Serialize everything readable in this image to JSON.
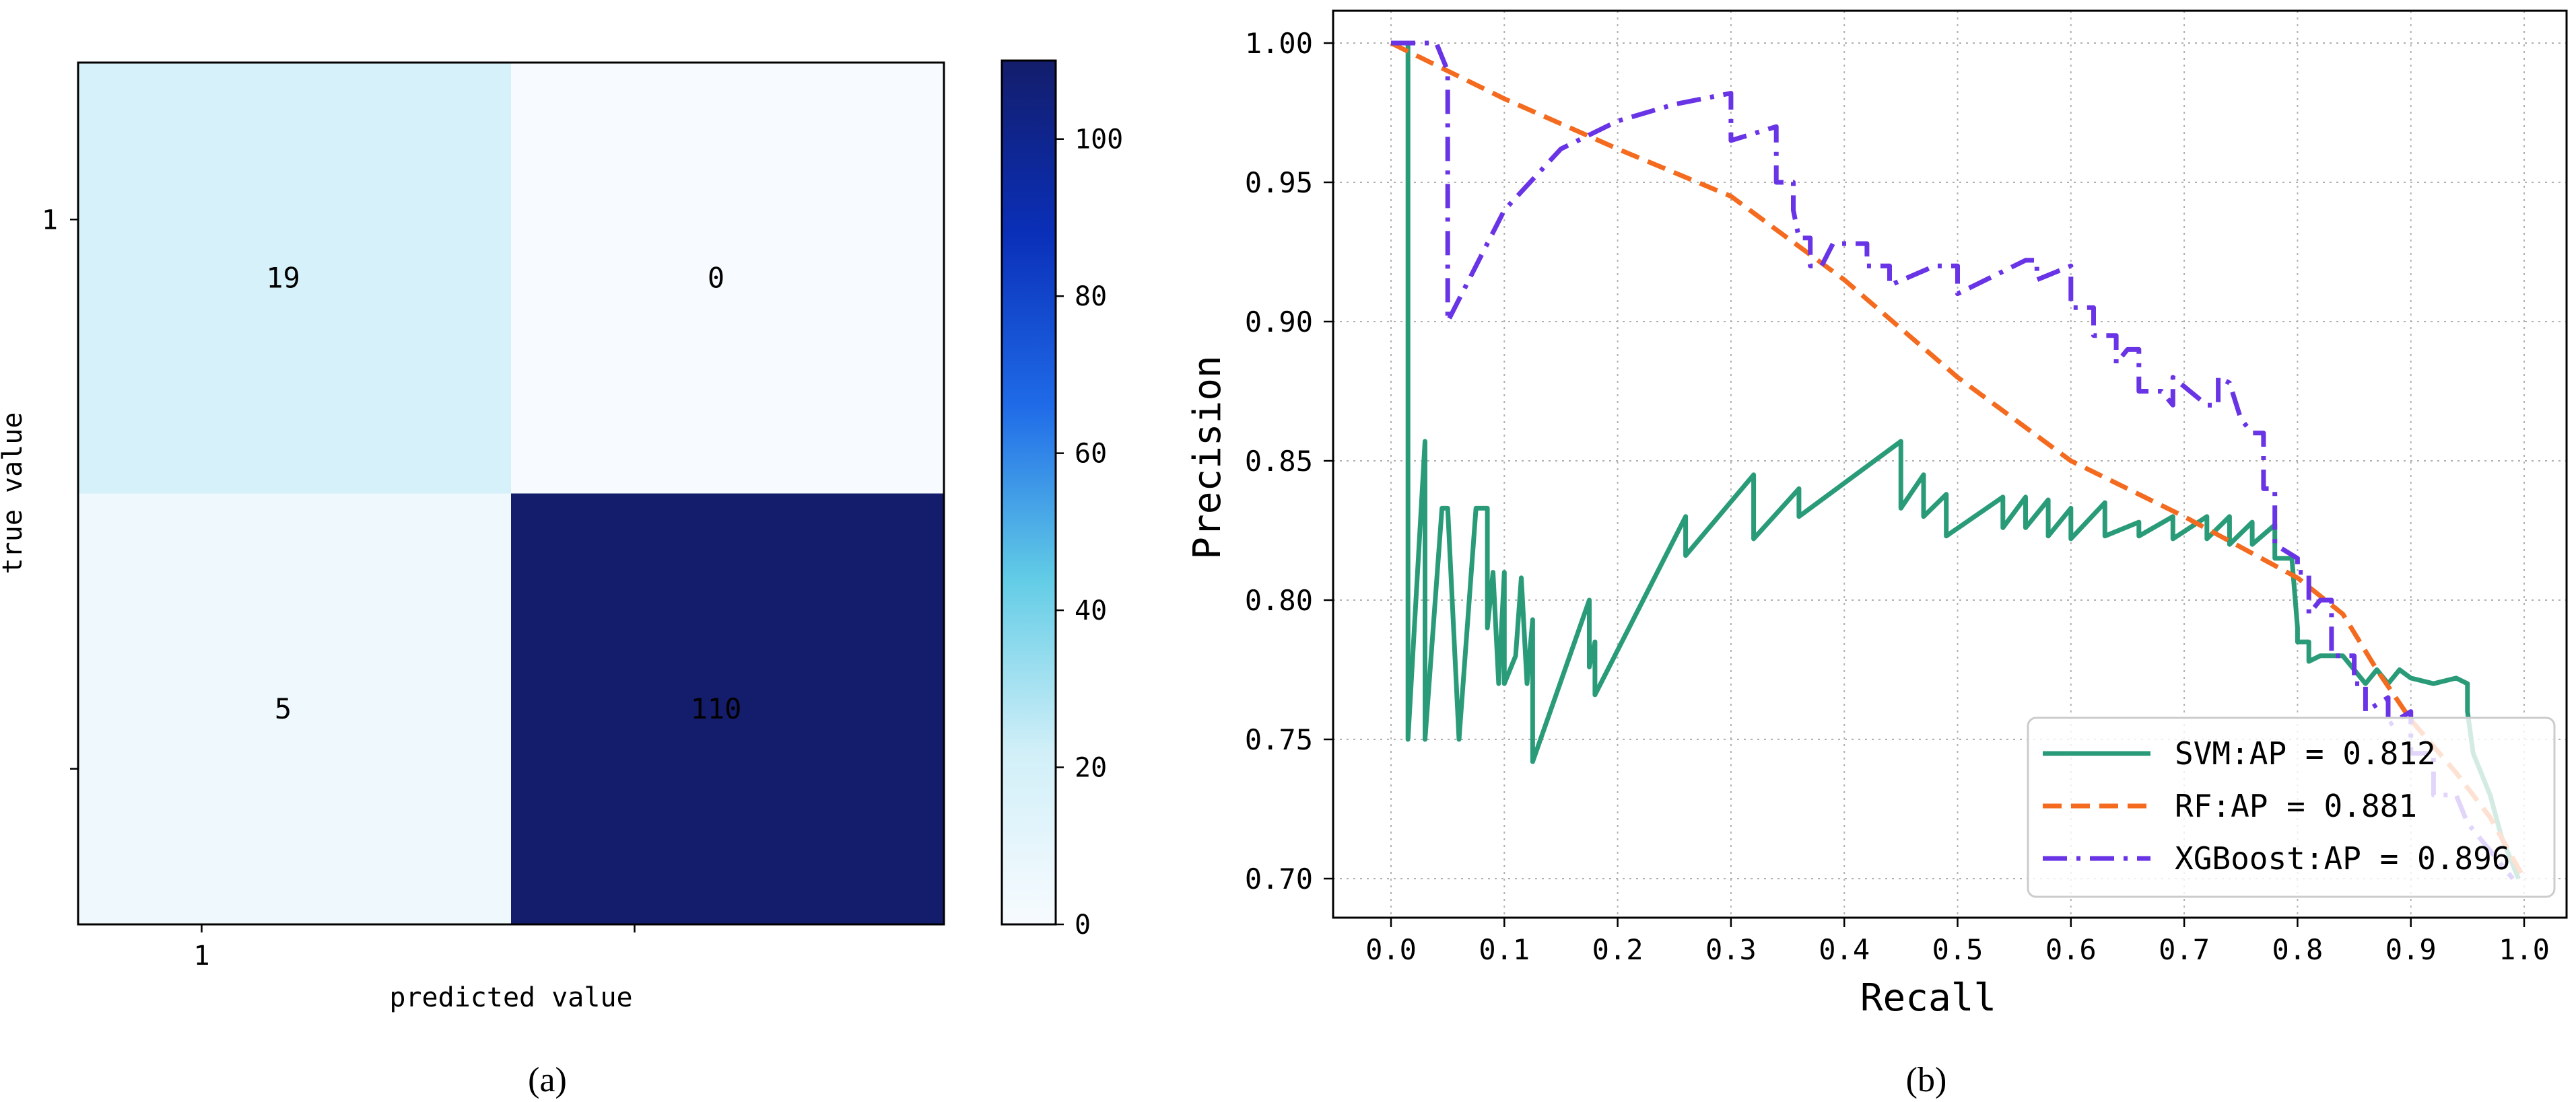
{
  "chart_data": [
    {
      "type": "heatmap",
      "panel_label": "(a)",
      "xlabel": "predicted value",
      "ylabel": "true value",
      "x_tick_labels": [
        "1",
        ""
      ],
      "y_tick_labels": [
        "1",
        ""
      ],
      "matrix": [
        [
          19,
          0
        ],
        [
          5,
          110
        ]
      ],
      "colorbar": {
        "min": 0,
        "max": 110,
        "ticks": [
          "0",
          "20",
          "40",
          "60",
          "80",
          "100"
        ],
        "tick_values": [
          0,
          20,
          40,
          60,
          80,
          100
        ],
        "colormap": [
          "#f7fbff",
          "#d1eff8",
          "#62cce6",
          "#1f6be8",
          "#0a2fb8",
          "#131d6b"
        ]
      }
    },
    {
      "type": "line",
      "panel_label": "(b)",
      "xlabel": "Recall",
      "ylabel": "Precision",
      "xlim": [
        -0.05,
        1.03
      ],
      "ylim": [
        0.685,
        1.005
      ],
      "x_ticks": [
        "0.0",
        "0.1",
        "0.2",
        "0.3",
        "0.4",
        "0.5",
        "0.6",
        "0.7",
        "0.8",
        "0.9",
        "1.0"
      ],
      "y_ticks": [
        "0.70",
        "0.75",
        "0.80",
        "0.85",
        "0.90",
        "0.95",
        "1.00"
      ],
      "grid": true,
      "legend_position": "lower-right",
      "series": [
        {
          "name": "SVM:AP = 0.812",
          "color": "#2a9b78",
          "style": "solid",
          "points": [
            [
              0.0,
              1.0
            ],
            [
              0.015,
              1.0
            ],
            [
              0.015,
              0.75
            ],
            [
              0.03,
              0.857
            ],
            [
              0.03,
              0.75
            ],
            [
              0.045,
              0.833
            ],
            [
              0.05,
              0.833
            ],
            [
              0.06,
              0.75
            ],
            [
              0.075,
              0.833
            ],
            [
              0.085,
              0.833
            ],
            [
              0.085,
              0.79
            ],
            [
              0.09,
              0.81
            ],
            [
              0.095,
              0.77
            ],
            [
              0.1,
              0.81
            ],
            [
              0.1,
              0.77
            ],
            [
              0.11,
              0.78
            ],
            [
              0.115,
              0.808
            ],
            [
              0.12,
              0.77
            ],
            [
              0.125,
              0.793
            ],
            [
              0.125,
              0.742
            ],
            [
              0.175,
              0.8
            ],
            [
              0.175,
              0.776
            ],
            [
              0.18,
              0.785
            ],
            [
              0.18,
              0.766
            ],
            [
              0.26,
              0.83
            ],
            [
              0.26,
              0.816
            ],
            [
              0.32,
              0.845
            ],
            [
              0.32,
              0.822
            ],
            [
              0.36,
              0.84
            ],
            [
              0.36,
              0.83
            ],
            [
              0.45,
              0.857
            ],
            [
              0.45,
              0.845
            ],
            [
              0.45,
              0.833
            ],
            [
              0.47,
              0.845
            ],
            [
              0.47,
              0.83
            ],
            [
              0.49,
              0.838
            ],
            [
              0.49,
              0.823
            ],
            [
              0.54,
              0.837
            ],
            [
              0.54,
              0.826
            ],
            [
              0.56,
              0.837
            ],
            [
              0.56,
              0.826
            ],
            [
              0.58,
              0.836
            ],
            [
              0.58,
              0.823
            ],
            [
              0.6,
              0.833
            ],
            [
              0.6,
              0.822
            ],
            [
              0.63,
              0.835
            ],
            [
              0.63,
              0.823
            ],
            [
              0.66,
              0.828
            ],
            [
              0.66,
              0.823
            ],
            [
              0.69,
              0.83
            ],
            [
              0.69,
              0.822
            ],
            [
              0.72,
              0.83
            ],
            [
              0.72,
              0.822
            ],
            [
              0.74,
              0.83
            ],
            [
              0.74,
              0.82
            ],
            [
              0.76,
              0.828
            ],
            [
              0.76,
              0.82
            ],
            [
              0.78,
              0.827
            ],
            [
              0.78,
              0.815
            ],
            [
              0.795,
              0.815
            ],
            [
              0.8,
              0.79
            ],
            [
              0.8,
              0.785
            ],
            [
              0.81,
              0.785
            ],
            [
              0.81,
              0.778
            ],
            [
              0.82,
              0.78
            ],
            [
              0.84,
              0.78
            ],
            [
              0.86,
              0.77
            ],
            [
              0.87,
              0.775
            ],
            [
              0.88,
              0.77
            ],
            [
              0.89,
              0.775
            ],
            [
              0.9,
              0.772
            ],
            [
              0.92,
              0.77
            ],
            [
              0.94,
              0.772
            ],
            [
              0.95,
              0.77
            ],
            [
              0.95,
              0.76
            ],
            [
              0.955,
              0.745
            ],
            [
              0.97,
              0.73
            ],
            [
              0.98,
              0.715
            ],
            [
              0.995,
              0.7
            ]
          ]
        },
        {
          "name": "RF:AP = 0.881",
          "color": "#f46b1f",
          "style": "dashed",
          "points": [
            [
              0.0,
              1.0
            ],
            [
              0.1,
              0.98
            ],
            [
              0.2,
              0.962
            ],
            [
              0.3,
              0.945
            ],
            [
              0.4,
              0.915
            ],
            [
              0.5,
              0.88
            ],
            [
              0.6,
              0.85
            ],
            [
              0.7,
              0.83
            ],
            [
              0.8,
              0.808
            ],
            [
              0.84,
              0.795
            ],
            [
              0.87,
              0.775
            ],
            [
              0.9,
              0.757
            ],
            [
              0.94,
              0.738
            ],
            [
              0.97,
              0.722
            ],
            [
              1.0,
              0.7
            ]
          ]
        },
        {
          "name": "XGBoost:AP = 0.896",
          "color": "#6933e6",
          "style": "dashdot",
          "points": [
            [
              0.0,
              1.0
            ],
            [
              0.04,
              1.0
            ],
            [
              0.045,
              0.995
            ],
            [
              0.05,
              0.99
            ],
            [
              0.05,
              0.9
            ],
            [
              0.1,
              0.94
            ],
            [
              0.15,
              0.962
            ],
            [
              0.2,
              0.972
            ],
            [
              0.25,
              0.978
            ],
            [
              0.3,
              0.982
            ],
            [
              0.3,
              0.965
            ],
            [
              0.34,
              0.97
            ],
            [
              0.34,
              0.95
            ],
            [
              0.355,
              0.95
            ],
            [
              0.355,
              0.94
            ],
            [
              0.36,
              0.93
            ],
            [
              0.37,
              0.93
            ],
            [
              0.37,
              0.92
            ],
            [
              0.38,
              0.92
            ],
            [
              0.39,
              0.928
            ],
            [
              0.42,
              0.928
            ],
            [
              0.42,
              0.92
            ],
            [
              0.44,
              0.92
            ],
            [
              0.44,
              0.913
            ],
            [
              0.48,
              0.92
            ],
            [
              0.5,
              0.92
            ],
            [
              0.5,
              0.91
            ],
            [
              0.56,
              0.922
            ],
            [
              0.57,
              0.922
            ],
            [
              0.57,
              0.915
            ],
            [
              0.6,
              0.92
            ],
            [
              0.6,
              0.905
            ],
            [
              0.62,
              0.905
            ],
            [
              0.62,
              0.895
            ],
            [
              0.64,
              0.895
            ],
            [
              0.64,
              0.885
            ],
            [
              0.65,
              0.89
            ],
            [
              0.66,
              0.89
            ],
            [
              0.66,
              0.875
            ],
            [
              0.68,
              0.875
            ],
            [
              0.69,
              0.87
            ],
            [
              0.69,
              0.88
            ],
            [
              0.72,
              0.87
            ],
            [
              0.73,
              0.87
            ],
            [
              0.73,
              0.88
            ],
            [
              0.74,
              0.878
            ],
            [
              0.75,
              0.865
            ],
            [
              0.76,
              0.86
            ],
            [
              0.77,
              0.86
            ],
            [
              0.77,
              0.84
            ],
            [
              0.78,
              0.84
            ],
            [
              0.78,
              0.82
            ],
            [
              0.8,
              0.815
            ],
            [
              0.8,
              0.81
            ],
            [
              0.81,
              0.81
            ],
            [
              0.81,
              0.795
            ],
            [
              0.82,
              0.8
            ],
            [
              0.83,
              0.8
            ],
            [
              0.83,
              0.78
            ],
            [
              0.85,
              0.78
            ],
            [
              0.85,
              0.77
            ],
            [
              0.86,
              0.77
            ],
            [
              0.86,
              0.76
            ],
            [
              0.88,
              0.765
            ],
            [
              0.88,
              0.755
            ],
            [
              0.9,
              0.76
            ],
            [
              0.9,
              0.745
            ],
            [
              0.92,
              0.745
            ],
            [
              0.92,
              0.73
            ],
            [
              0.94,
              0.73
            ],
            [
              0.95,
              0.72
            ],
            [
              0.96,
              0.715
            ],
            [
              0.97,
              0.71
            ],
            [
              0.98,
              0.705
            ],
            [
              0.99,
              0.7
            ]
          ]
        }
      ]
    }
  ]
}
